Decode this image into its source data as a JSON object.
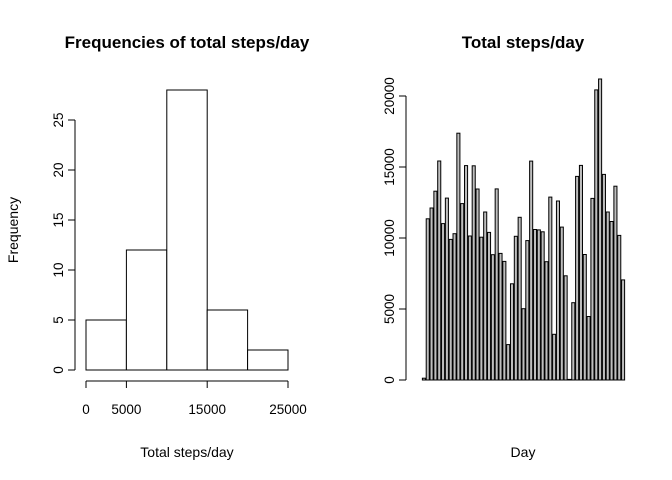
{
  "chart_data": [
    {
      "type": "bar",
      "title": "Frequencies of total steps/day",
      "xlabel": "Total steps/day",
      "ylabel": "Frequency",
      "bins": [
        [
          0,
          5000
        ],
        [
          5000,
          10000
        ],
        [
          10000,
          15000
        ],
        [
          15000,
          20000
        ],
        [
          20000,
          25000
        ]
      ],
      "values": [
        5,
        12,
        28,
        6,
        2
      ],
      "xticks": [
        0,
        5000,
        15000,
        25000
      ],
      "xtick_labels": [
        "0",
        "5000",
        "15000",
        "25000"
      ],
      "yticks": [
        0,
        5,
        10,
        15,
        20,
        25
      ],
      "ytick_labels": [
        "0",
        "5",
        "10",
        "15",
        "20",
        "25"
      ],
      "xlim": [
        0,
        25000
      ],
      "ylim": [
        0,
        28
      ],
      "grid": false
    },
    {
      "type": "bar",
      "title": "Total steps/day",
      "xlabel": "Day",
      "ylabel": "",
      "values": [
        126,
        11352,
        12116,
        13294,
        15420,
        11015,
        12811,
        9900,
        10304,
        17382,
        12426,
        15098,
        10139,
        15084,
        13452,
        10056,
        11829,
        10395,
        8821,
        13460,
        8918,
        8355,
        2492,
        6778,
        10119,
        11458,
        5018,
        9819,
        15414,
        10600,
        10571,
        10439,
        8334,
        12883,
        3219,
        12608,
        10765,
        7336,
        41,
        5441,
        14339,
        15110,
        8841,
        4472,
        12787,
        20427,
        21194,
        14478,
        11834,
        11162,
        13646,
        10183,
        7047
      ],
      "yticks": [
        0,
        5000,
        10000,
        15000,
        20000
      ],
      "ytick_labels": [
        "0",
        "5000",
        "10000",
        "15000",
        "20000"
      ],
      "ylim": [
        0,
        21194
      ],
      "grid": false
    }
  ]
}
